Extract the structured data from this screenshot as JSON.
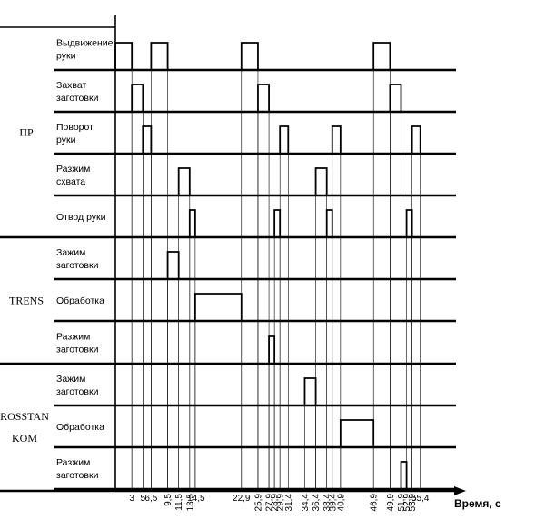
{
  "chart_data": {
    "type": "timing-diagram",
    "x_axis_label": "Время, с",
    "x_ticks": [
      "3",
      "5",
      "6,5",
      "9,5",
      "11,5",
      "13,5",
      "14,5",
      "22,9",
      "25,9",
      "27,9",
      "28,9",
      "29,9",
      "31,4",
      "34,4",
      "36,4",
      "38,4",
      "39,4",
      "40,9",
      "46,9",
      "49,9",
      "51,9",
      "52,9",
      "53,9",
      "55,4"
    ],
    "groups": [
      {
        "name": "ПР",
        "rows": [
          {
            "label": [
              "Выдвижение",
              "руки"
            ],
            "intervals": [
              [
                0,
                3
              ],
              [
                6.5,
                9.5
              ],
              [
                22.9,
                25.9
              ],
              [
                46.9,
                49.9
              ]
            ]
          },
          {
            "label": [
              "Захват",
              "заготовки"
            ],
            "intervals": [
              [
                3,
                5
              ],
              [
                25.9,
                27.9
              ],
              [
                49.9,
                51.9
              ]
            ]
          },
          {
            "label": [
              "Поворот",
              "руки"
            ],
            "intervals": [
              [
                5,
                6.5
              ],
              [
                29.9,
                31.4
              ],
              [
                39.4,
                40.9
              ],
              [
                53.9,
                55.4
              ]
            ]
          },
          {
            "label": [
              "Разжим",
              "схвата"
            ],
            "intervals": [
              [
                11.5,
                13.5
              ],
              [
                36.4,
                38.4
              ]
            ]
          },
          {
            "label": [
              "Отвод руки"
            ],
            "intervals": [
              [
                13.5,
                14.5
              ],
              [
                28.9,
                29.9
              ],
              [
                38.4,
                39.4
              ],
              [
                52.9,
                53.9
              ]
            ]
          }
        ]
      },
      {
        "name": "TRENS",
        "rows": [
          {
            "label": [
              "Зажим",
              "заготовки"
            ],
            "intervals": [
              [
                9.5,
                11.5
              ]
            ]
          },
          {
            "label": [
              "Обработка"
            ],
            "intervals": [
              [
                14.5,
                22.9
              ]
            ]
          },
          {
            "label": [
              "Разжим",
              "заготовки"
            ],
            "intervals": [
              [
                27.9,
                28.9
              ]
            ]
          }
        ]
      },
      {
        "name": [
          "ROSSTAN",
          "KOM"
        ],
        "rows": [
          {
            "label": [
              "Зажим",
              "заготовки"
            ],
            "intervals": [
              [
                34.4,
                36.4
              ]
            ]
          },
          {
            "label": [
              "Обработка"
            ],
            "intervals": [
              [
                40.9,
                46.9
              ]
            ]
          },
          {
            "label": [
              "Разжим",
              "заготовки"
            ],
            "intervals": [
              [
                51.9,
                52.9
              ]
            ]
          }
        ]
      }
    ]
  }
}
